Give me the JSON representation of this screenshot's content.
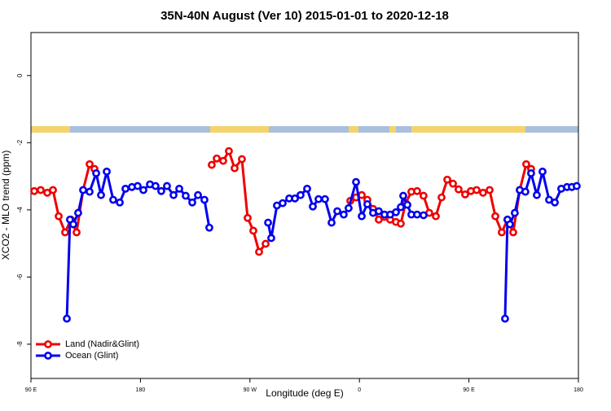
{
  "chart_data": {
    "type": "line",
    "title": "35N-40N August (Ver 10)   2015-01-01 to 2020-12-18",
    "x_label": "Longitude (deg E)",
    "y_label": "XCO2 - MLO trend (ppm)",
    "xlim": [
      90,
      540
    ],
    "xticks": [
      {
        "value": 90,
        "label": "90 E"
      },
      180,
      {
        "value": 270,
        "label": "90 W"
      },
      {
        "value": 360,
        "label": "0"
      },
      {
        "value": 450,
        "label": "90 E"
      },
      {
        "value": 540,
        "label": "180"
      }
    ],
    "ylim": [
      -9.02,
      1.28
    ],
    "yticks": [
      0,
      -2,
      -4,
      -6,
      -8
    ],
    "legend": "bottom-left",
    "series": [
      {
        "name": "Land (Nadir&Glint)",
        "color": "#ee0000",
        "x": [
          92.7,
          98.0,
          103.4,
          108.1,
          112.8,
          118.1,
          122.8,
          127.5,
          132.9,
          138.2,
          142.2,
          190,
          238.6,
          242.7,
          248.0,
          252.7,
          257.4,
          263.4,
          268.1,
          272.8,
          277.5,
          282.9,
          320,
          352.5,
          357.2,
          361.9,
          366.5,
          371.2,
          375.9,
          380.6,
          385.3,
          390.0,
          394.0,
          398.0,
          402.7,
          407.4,
          412.7,
          417.4,
          422.8,
          427.5,
          432.2,
          436.9,
          441.5,
          446.9,
          451.6,
          456.3,
          461.6,
          467.0,
          471.7,
          477.0,
          481.7,
          486.4,
          491.8,
          497.1,
          501.1
        ],
        "values": [
          -3.44,
          -3.41,
          -3.49,
          -3.41,
          -4.19,
          -4.67,
          -4.29,
          -4.67,
          -3.41,
          -2.64,
          -2.78,
          null,
          -2.66,
          -2.47,
          -2.54,
          -2.25,
          -2.76,
          -2.49,
          -4.24,
          -4.62,
          -5.25,
          -5.01,
          null,
          -3.73,
          -3.63,
          -3.56,
          -3.7,
          -3.97,
          -4.29,
          -4.21,
          -4.29,
          -4.36,
          -4.41,
          -3.8,
          -3.46,
          -3.44,
          -3.58,
          -4.09,
          -4.19,
          -3.63,
          -3.1,
          -3.22,
          -3.39,
          -3.54,
          -3.44,
          -3.41,
          -3.49,
          -3.41,
          -4.19,
          -4.67,
          -4.29,
          -4.67,
          -3.41,
          -2.64,
          -2.78
        ]
      },
      {
        "name": "Ocean (Glint)",
        "color": "#0000ee",
        "x": [
          119.5,
          122.1,
          124.8,
          128.8,
          132.9,
          138.2,
          143.6,
          147.6,
          152.3,
          157.6,
          163.0,
          167.7,
          173.0,
          177.7,
          182.4,
          187.8,
          192.4,
          197.1,
          201.8,
          207.2,
          211.9,
          217.2,
          222.6,
          227.3,
          232.6,
          236.6,
          260,
          284.9,
          287.5,
          292.2,
          296.9,
          302.3,
          307.0,
          311.6,
          317.0,
          321.7,
          326.4,
          331.7,
          337.1,
          341.8,
          347.1,
          351.1,
          357.2,
          361.9,
          366.5,
          371.2,
          375.9,
          380.6,
          385.3,
          390.0,
          394.0,
          396.0,
          399.4,
          402.7,
          407.4,
          412.7,
          450,
          479.7,
          481.7,
          483.7,
          487.7,
          491.8,
          496.4,
          501.1,
          505.8,
          510.5,
          515.9,
          520.6,
          525.9,
          530.6,
          534.6,
          538.6
        ],
        "values": [
          -7.24,
          -4.29,
          -4.43,
          -4.09,
          -3.41,
          -3.46,
          -2.91,
          -3.56,
          -2.86,
          -3.7,
          -3.78,
          -3.37,
          -3.32,
          -3.29,
          -3.41,
          -3.24,
          -3.29,
          -3.44,
          -3.29,
          -3.56,
          -3.37,
          -3.58,
          -3.78,
          -3.56,
          -3.7,
          -4.53,
          null,
          -4.38,
          -4.84,
          -3.87,
          -3.8,
          -3.66,
          -3.66,
          -3.56,
          -3.37,
          -3.9,
          -3.68,
          -3.68,
          -4.38,
          -4.04,
          -4.14,
          -3.95,
          -3.17,
          -4.19,
          -3.83,
          -4.09,
          -4.04,
          -4.14,
          -4.14,
          -4.07,
          -3.92,
          -3.58,
          -3.85,
          -4.14,
          -4.14,
          -4.16,
          null,
          -7.24,
          -4.29,
          -4.43,
          -4.09,
          -3.41,
          -3.46,
          -2.91,
          -3.56,
          -2.86,
          -3.7,
          -3.78,
          -3.37,
          -3.32,
          -3.32,
          -3.29
        ]
      }
    ]
  }
}
